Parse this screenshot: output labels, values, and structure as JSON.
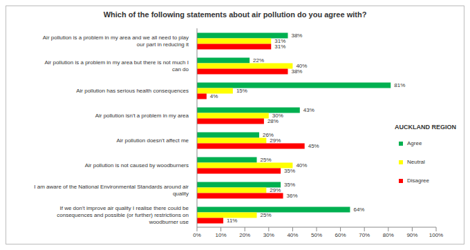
{
  "chart_data": {
    "type": "bar",
    "title": "Which of the following statements about air pollution do you agree with?",
    "orientation": "horizontal",
    "data_labels": true,
    "grid": false,
    "legend": "right",
    "annotations": [
      "AUCKLAND REGION"
    ],
    "categories": [
      "Air pollution is a problem in my area and we all need to play our part in reducing it",
      "Air pollution is a problem in my area but there is not much I can do",
      "Air pollution has serious health consequences",
      "Air pollution isn't a problem in my area",
      "Air pollution doesn't affect me",
      "Air pollution is not caused by woodburners",
      "I am aware of the National Environmental Standards around air quality",
      "If we don't improve air quality I realise there could be consequences and possible (or further) restrictions on woodburner use"
    ],
    "series": [
      {
        "name": "Agree",
        "color": "#00b050",
        "values": [
          38,
          22,
          81,
          43,
          26,
          25,
          35,
          64
        ],
        "value_labels": [
          "38%",
          "22%",
          "81%",
          "43%",
          "26%",
          "25%",
          "35%",
          "64%"
        ]
      },
      {
        "name": "Neutral",
        "color": "#ffff00",
        "values": [
          31,
          40,
          15,
          30,
          29,
          40,
          29,
          25
        ],
        "value_labels": [
          "31%",
          "40%",
          "15%",
          "30%",
          "29%",
          "40%",
          "29%",
          "25%"
        ]
      },
      {
        "name": "Disagree",
        "color": "#ff0000",
        "values": [
          31,
          38,
          4,
          28,
          45,
          35,
          36,
          11
        ],
        "value_labels": [
          "31%",
          "38%",
          "4%",
          "28%",
          "45%",
          "35%",
          "36%",
          "11%"
        ]
      }
    ],
    "xlim": [
      0,
      100
    ],
    "xticks": [
      {
        "value": 0,
        "label": "0%"
      },
      {
        "value": 10,
        "label": "10%"
      },
      {
        "value": 20,
        "label": "20%"
      },
      {
        "value": 30,
        "label": "30%"
      },
      {
        "value": 40,
        "label": "40%"
      },
      {
        "value": 50,
        "label": "50%"
      },
      {
        "value": 60,
        "label": "60%"
      },
      {
        "value": 70,
        "label": "70%"
      },
      {
        "value": 80,
        "label": "80%"
      },
      {
        "value": 90,
        "label": "90%"
      },
      {
        "value": 100,
        "label": "100%"
      }
    ]
  }
}
